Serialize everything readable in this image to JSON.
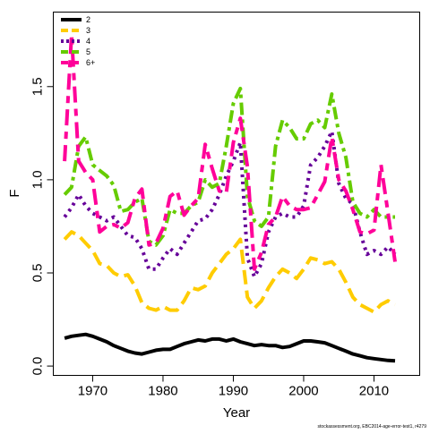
{
  "chart_data": {
    "type": "line",
    "xlabel": "Year",
    "ylabel": "F",
    "xlim": [
      1964.4,
      2016.5
    ],
    "ylim": [
      -0.05,
      1.9
    ],
    "x_ticks": [
      1970,
      1980,
      1990,
      2000,
      2010
    ],
    "x_tick_labels": [
      "1970",
      "1980",
      "1990",
      "2000",
      "2010"
    ],
    "y_ticks": [
      0.0,
      0.5,
      1.0,
      1.5
    ],
    "y_tick_labels": [
      "0.0",
      "0.5",
      "1.0",
      "1.5"
    ],
    "grid": false,
    "legend_position": "top-left",
    "footnote": "stockassessment.org, EBC2014-age-error-test1, r4279",
    "x": [
      1966,
      1967,
      1968,
      1969,
      1970,
      1971,
      1972,
      1973,
      1974,
      1975,
      1976,
      1977,
      1978,
      1979,
      1980,
      1981,
      1982,
      1983,
      1984,
      1985,
      1986,
      1987,
      1988,
      1989,
      1990,
      1991,
      1992,
      1993,
      1994,
      1995,
      1996,
      1997,
      1998,
      1999,
      2000,
      2001,
      2002,
      2003,
      2004,
      2005,
      2006,
      2007,
      2008,
      2009,
      2010,
      2011,
      2012,
      2013
    ],
    "series": [
      {
        "name": "2",
        "color": "#000000",
        "dash": "solid",
        "values": [
          0.15,
          0.16,
          0.165,
          0.17,
          0.16,
          0.145,
          0.13,
          0.11,
          0.095,
          0.08,
          0.07,
          0.065,
          0.075,
          0.085,
          0.09,
          0.09,
          0.105,
          0.12,
          0.13,
          0.14,
          0.135,
          0.145,
          0.145,
          0.135,
          0.145,
          0.13,
          0.12,
          0.11,
          0.115,
          0.11,
          0.11,
          0.1,
          0.105,
          0.12,
          0.135,
          0.135,
          0.13,
          0.125,
          0.11,
          0.095,
          0.08,
          0.065,
          0.055,
          0.045,
          0.04,
          0.035,
          0.03,
          0.028
        ]
      },
      {
        "name": "3",
        "color": "#ffcc00",
        "dash": "long",
        "values": [
          0.68,
          0.72,
          0.7,
          0.66,
          0.62,
          0.55,
          0.54,
          0.5,
          0.48,
          0.49,
          0.43,
          0.34,
          0.31,
          0.3,
          0.32,
          0.3,
          0.3,
          0.35,
          0.42,
          0.41,
          0.43,
          0.5,
          0.55,
          0.6,
          0.63,
          0.68,
          0.37,
          0.31,
          0.35,
          0.42,
          0.48,
          0.52,
          0.5,
          0.47,
          0.52,
          0.58,
          0.57,
          0.55,
          0.56,
          0.52,
          0.45,
          0.37,
          0.33,
          0.31,
          0.29,
          0.33,
          0.35,
          0.33
        ]
      },
      {
        "name": "4",
        "color": "#660099",
        "dash": "dotted",
        "values": [
          0.8,
          0.85,
          0.92,
          0.86,
          0.82,
          0.8,
          0.78,
          0.8,
          0.75,
          0.7,
          0.69,
          0.63,
          0.52,
          0.52,
          0.58,
          0.63,
          0.6,
          0.66,
          0.72,
          0.78,
          0.79,
          0.84,
          0.92,
          1.02,
          1.1,
          1.2,
          0.58,
          0.48,
          0.55,
          0.72,
          0.8,
          0.82,
          0.8,
          0.8,
          0.86,
          1.08,
          1.12,
          1.18,
          1.26,
          0.98,
          0.9,
          0.87,
          0.72,
          0.6,
          0.62,
          0.6,
          0.64,
          0.6
        ]
      },
      {
        "name": "5",
        "color": "#66cc00",
        "dash": "dashdot",
        "values": [
          0.92,
          0.96,
          1.18,
          1.23,
          1.08,
          1.05,
          1.02,
          0.97,
          0.83,
          0.84,
          0.88,
          0.9,
          0.67,
          0.65,
          0.7,
          0.84,
          0.82,
          0.82,
          0.86,
          0.88,
          1.0,
          0.96,
          0.98,
          1.18,
          1.41,
          1.49,
          0.91,
          0.78,
          0.75,
          0.8,
          1.18,
          1.32,
          1.28,
          1.22,
          1.22,
          1.3,
          1.32,
          1.28,
          1.46,
          1.25,
          1.12,
          0.88,
          0.82,
          0.8,
          0.84,
          0.8,
          0.8,
          0.8
        ]
      },
      {
        "name": "6+",
        "color": "#ff0099",
        "dash": "twodash",
        "values": [
          1.1,
          1.78,
          1.1,
          1.04,
          1.0,
          0.72,
          0.75,
          0.76,
          0.74,
          0.77,
          0.9,
          0.95,
          0.65,
          0.66,
          0.74,
          0.91,
          0.94,
          0.81,
          0.86,
          0.9,
          1.19,
          1.06,
          0.94,
          0.93,
          1.2,
          1.33,
          1.07,
          0.52,
          0.61,
          0.76,
          0.8,
          0.91,
          0.86,
          0.84,
          0.84,
          0.85,
          0.92,
          0.99,
          1.23,
          1.0,
          0.94,
          0.84,
          0.72,
          0.71,
          0.73,
          1.08,
          0.82,
          0.56
        ]
      }
    ]
  }
}
